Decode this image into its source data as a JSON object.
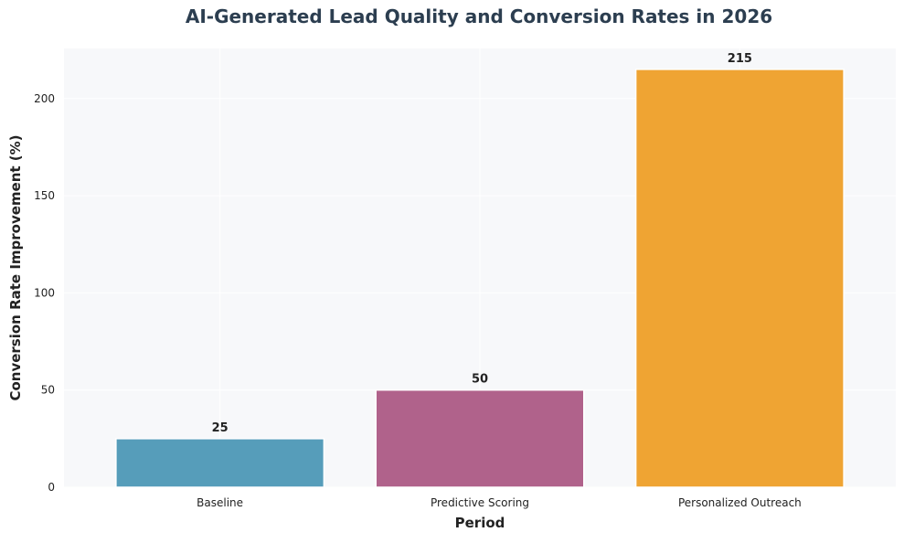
{
  "chart_data": {
    "type": "bar",
    "title": "AI-Generated Lead Quality and Conversion Rates in 2026",
    "xlabel": "Period",
    "ylabel": "Conversion Rate Improvement (%)",
    "categories": [
      "Baseline",
      "Predictive Scoring",
      "Personalized Outreach"
    ],
    "values": [
      25,
      50,
      215
    ],
    "value_labels": [
      "25",
      "50",
      "215"
    ],
    "bar_colors": [
      "#569dba",
      "#b0628b",
      "#efa433"
    ],
    "ylim": [
      0,
      225.75
    ],
    "yticks": [
      0,
      50,
      100,
      150,
      200
    ],
    "ytick_labels": [
      "0",
      "50",
      "100",
      "150",
      "200"
    ],
    "grid": true,
    "legend": false
  },
  "colors": {
    "plot_background": "#f7f8fa",
    "grid": "#ffffff",
    "title": "#2c3e50",
    "text": "#222222"
  }
}
